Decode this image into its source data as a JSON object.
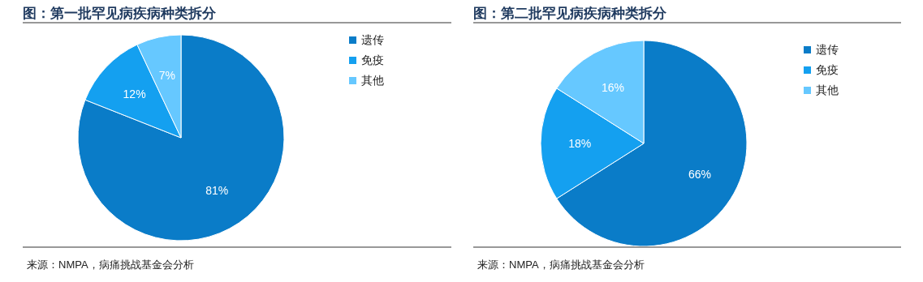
{
  "chart_data": [
    {
      "type": "pie",
      "title": "图：第一批罕见病疾病种类拆分",
      "categories": [
        "遗传",
        "免疫",
        "其他"
      ],
      "values": [
        81,
        12,
        7
      ],
      "colors": [
        "#0a7cc8",
        "#14a0f0",
        "#66c8ff"
      ],
      "value_labels": [
        "81%",
        "12%",
        "7%"
      ],
      "legend": "right",
      "annotations": [
        "来源：NMPA，病痛挑战基金会分析"
      ]
    },
    {
      "type": "pie",
      "title": "图：第二批罕见病疾病种类拆分",
      "categories": [
        "遗传",
        "免疫",
        "其他"
      ],
      "values": [
        66,
        18,
        16
      ],
      "colors": [
        "#0a7cc8",
        "#14a0f0",
        "#66c8ff"
      ],
      "value_labels": [
        "66%",
        "18%",
        "16%"
      ],
      "legend": "right",
      "annotations": [
        "来源：NMPA，病痛挑战基金会分析"
      ]
    }
  ]
}
